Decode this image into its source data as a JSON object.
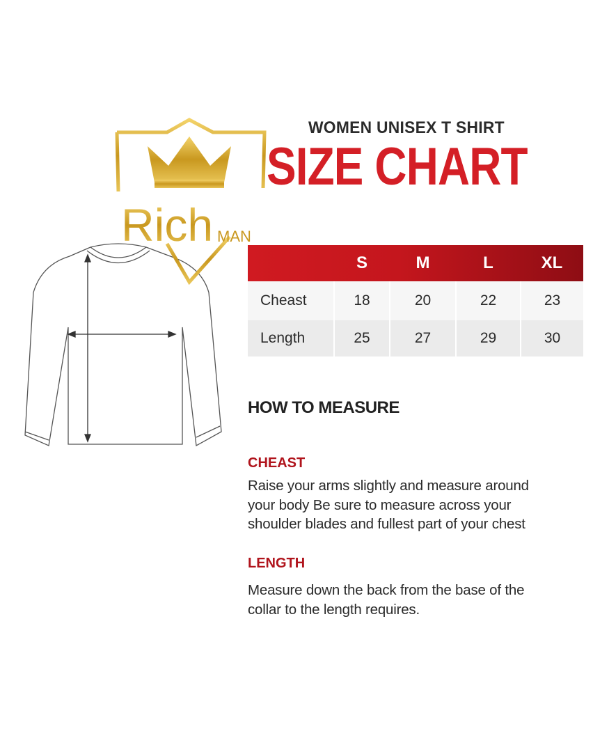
{
  "brand": {
    "logo_text": "Rich",
    "logo_subtext": "MAN"
  },
  "header": {
    "subtitle": "WOMEN UNISEX T SHIRT",
    "title": "SIZE CHART"
  },
  "size_table": {
    "columns": [
      "",
      "S",
      "M",
      "L",
      "XL"
    ],
    "rows": [
      {
        "label": "Cheast",
        "values": [
          "18",
          "20",
          "22",
          "23"
        ]
      },
      {
        "label": "Length",
        "values": [
          "25",
          "27",
          "29",
          "30"
        ]
      }
    ]
  },
  "how_to_measure": {
    "heading": "HOW TO MEASURE",
    "sections": [
      {
        "title": "CHEAST",
        "lines": [
          "Raise your arms slightly and measure around",
          "your body Be sure to measure across your",
          "shoulder blades and fullest part of your chest"
        ]
      },
      {
        "title": "LENGTH",
        "lines": [
          "Measure down the back from the base of the",
          "collar to the length requires."
        ]
      }
    ]
  },
  "colors": {
    "accent_red": "#d41f26",
    "header_red_dark": "#8e0d14",
    "gold": "#d4a935"
  }
}
